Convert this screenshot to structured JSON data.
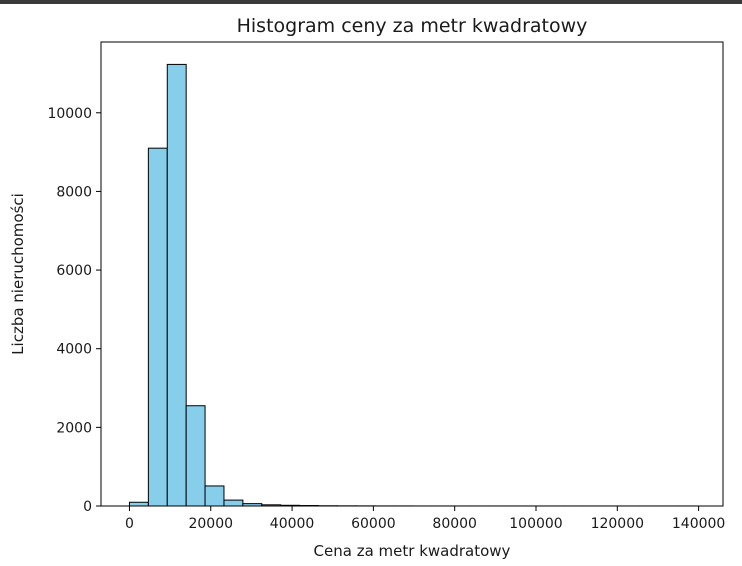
{
  "chart_data": {
    "type": "bar",
    "title": "Histogram ceny za metr kwadratowy",
    "xlabel": "Cena za metr kwadratowy",
    "ylabel": "Liczba nieruchomości",
    "xlim": [
      -7000,
      146000
    ],
    "ylim": [
      0,
      11800
    ],
    "bar_color": "#87ceeb",
    "edge_color": "#000000",
    "grid": false,
    "x_ticks": [
      0,
      20000,
      40000,
      60000,
      80000,
      100000,
      120000,
      140000
    ],
    "y_ticks": [
      0,
      2000,
      4000,
      6000,
      8000,
      10000
    ],
    "x_tick_labels": [
      "0",
      "20000",
      "40000",
      "60000",
      "80000",
      "100000",
      "120000",
      "140000"
    ],
    "y_tick_labels": [
      "0",
      "2000",
      "4000",
      "6000",
      "8000",
      "10000"
    ],
    "bins": [
      {
        "x0": 0,
        "x1": 4650,
        "value": 95
      },
      {
        "x0": 4650,
        "x1": 9300,
        "value": 9100
      },
      {
        "x0": 9300,
        "x1": 13950,
        "value": 11230
      },
      {
        "x0": 13950,
        "x1": 18600,
        "value": 2550
      },
      {
        "x0": 18600,
        "x1": 23250,
        "value": 510
      },
      {
        "x0": 23250,
        "x1": 27900,
        "value": 150
      },
      {
        "x0": 27900,
        "x1": 32550,
        "value": 60
      },
      {
        "x0": 32550,
        "x1": 37200,
        "value": 30
      },
      {
        "x0": 37200,
        "x1": 41850,
        "value": 18
      },
      {
        "x0": 41850,
        "x1": 46500,
        "value": 12
      },
      {
        "x0": 46500,
        "x1": 51150,
        "value": 6
      },
      {
        "x0": 51150,
        "x1": 55800,
        "value": 4
      },
      {
        "x0": 55800,
        "x1": 60450,
        "value": 3
      },
      {
        "x0": 60450,
        "x1": 65100,
        "value": 2
      },
      {
        "x0": 65100,
        "x1": 69750,
        "value": 2
      },
      {
        "x0": 69750,
        "x1": 74400,
        "value": 1
      },
      {
        "x0": 74400,
        "x1": 79050,
        "value": 1
      },
      {
        "x0": 79050,
        "x1": 83700,
        "value": 1
      },
      {
        "x0": 83700,
        "x1": 88350,
        "value": 1
      },
      {
        "x0": 88350,
        "x1": 93000,
        "value": 1
      },
      {
        "x0": 93000,
        "x1": 97650,
        "value": 1
      },
      {
        "x0": 97650,
        "x1": 102300,
        "value": 1
      },
      {
        "x0": 102300,
        "x1": 106950,
        "value": 1
      },
      {
        "x0": 106950,
        "x1": 111600,
        "value": 1
      },
      {
        "x0": 111600,
        "x1": 116250,
        "value": 1
      },
      {
        "x0": 116250,
        "x1": 120900,
        "value": 1
      },
      {
        "x0": 120900,
        "x1": 125550,
        "value": 1
      },
      {
        "x0": 125550,
        "x1": 130200,
        "value": 1
      },
      {
        "x0": 130200,
        "x1": 134850,
        "value": 1
      },
      {
        "x0": 134850,
        "x1": 139500,
        "value": 1
      }
    ]
  }
}
